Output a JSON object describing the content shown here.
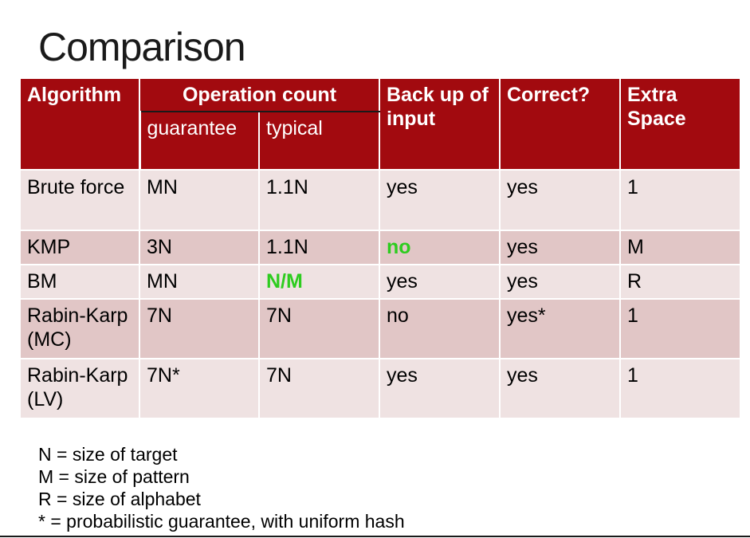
{
  "slide": {
    "title": "Comparison"
  },
  "table": {
    "headers": {
      "algorithm": "Algorithm",
      "operation_count": "Operation count",
      "guarantee": "guarantee",
      "typical": "typical",
      "backup": "Back up of input",
      "correct": "Correct?",
      "extra_space": "Extra Space"
    },
    "rows": [
      {
        "algorithm": "Brute force",
        "guarantee": "MN",
        "typical": "1.1N",
        "backup": "yes",
        "correct": "yes",
        "space": "1"
      },
      {
        "algorithm": "KMP",
        "guarantee": "3N",
        "typical": "1.1N",
        "backup": "no",
        "correct": "yes",
        "space": "M"
      },
      {
        "algorithm": "BM",
        "guarantee": "MN",
        "typical": "N/M",
        "backup": "yes",
        "correct": "yes",
        "space": "R"
      },
      {
        "algorithm": "Rabin-Karp (MC)",
        "guarantee": "7N",
        "typical": "7N",
        "backup": "no",
        "correct": "yes*",
        "space": "1"
      },
      {
        "algorithm": "Rabin-Karp (LV)",
        "guarantee": "7N*",
        "typical": "7N",
        "backup": "yes",
        "correct": "yes",
        "space": "1"
      }
    ]
  },
  "legend": [
    "N = size of target",
    "M = size of pattern",
    "R = size of alphabet",
    "* = probabilistic guarantee, with uniform hash"
  ],
  "colors": {
    "header_bg": "#a20a0f",
    "row_light": "#efe2e2",
    "row_dark": "#e1c6c6",
    "highlight": "#2ecc1f"
  }
}
